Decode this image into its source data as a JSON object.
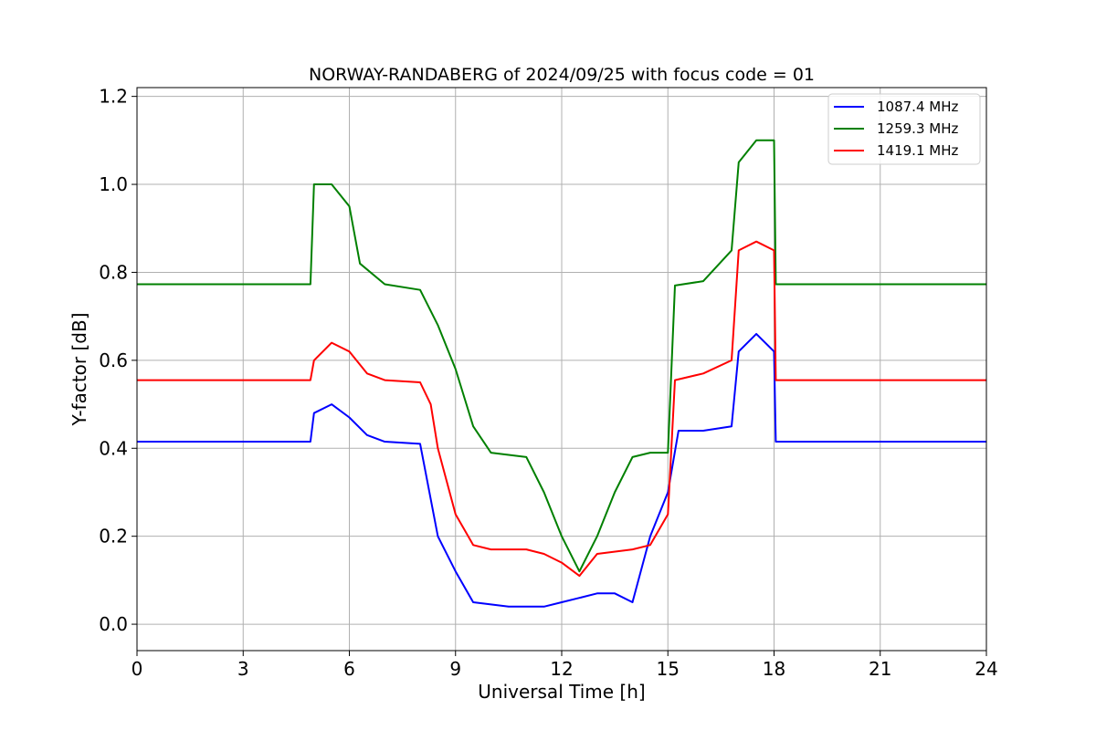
{
  "chart_data": {
    "type": "line",
    "title": "NORWAY-RANDABERG of 2024/09/25 with focus code = 01",
    "xlabel": "Universal Time [h]",
    "ylabel": "Y-factor [dB]",
    "xlim": [
      0,
      24
    ],
    "ylim": [
      -0.06,
      1.22
    ],
    "xticks": [
      0,
      3,
      6,
      9,
      12,
      15,
      18,
      21,
      24
    ],
    "yticks": [
      0.0,
      0.2,
      0.4,
      0.6,
      0.8,
      1.0,
      1.2
    ],
    "ytick_labels": [
      "0.0",
      "0.2",
      "0.4",
      "0.6",
      "0.8",
      "1.0",
      "1.2"
    ],
    "grid": true,
    "legend_position": "top-right",
    "series": [
      {
        "name": "1087.4 MHz",
        "color": "#0000ff",
        "x": [
          0,
          4.9,
          5.0,
          5.5,
          6.0,
          6.5,
          7.0,
          8.0,
          8.5,
          9.0,
          9.5,
          10.5,
          11.5,
          12.0,
          12.5,
          13.0,
          13.5,
          14.0,
          14.5,
          15.0,
          15.3,
          16.0,
          16.8,
          17.0,
          17.5,
          18.0,
          18.05,
          24
        ],
        "y": [
          0.415,
          0.415,
          0.48,
          0.5,
          0.47,
          0.43,
          0.415,
          0.41,
          0.2,
          0.12,
          0.05,
          0.04,
          0.04,
          0.05,
          0.06,
          0.07,
          0.07,
          0.05,
          0.2,
          0.3,
          0.44,
          0.44,
          0.45,
          0.62,
          0.66,
          0.62,
          0.415,
          0.415
        ]
      },
      {
        "name": "1259.3 MHz",
        "color": "#008000",
        "x": [
          0,
          4.9,
          5.0,
          5.5,
          6.0,
          6.3,
          7.0,
          8.0,
          8.5,
          9.0,
          9.5,
          10.0,
          11.0,
          11.5,
          12.0,
          12.5,
          13.0,
          13.5,
          14.0,
          14.5,
          15.0,
          15.2,
          16.0,
          16.8,
          17.0,
          17.5,
          18.0,
          18.05,
          24
        ],
        "y": [
          0.773,
          0.773,
          1.0,
          1.0,
          0.95,
          0.82,
          0.773,
          0.76,
          0.68,
          0.58,
          0.45,
          0.39,
          0.38,
          0.3,
          0.2,
          0.12,
          0.2,
          0.3,
          0.38,
          0.39,
          0.39,
          0.77,
          0.78,
          0.85,
          1.05,
          1.1,
          1.1,
          0.773,
          0.773
        ]
      },
      {
        "name": "1419.1 MHz",
        "color": "#ff0000",
        "x": [
          0,
          4.9,
          5.0,
          5.5,
          6.0,
          6.5,
          7.0,
          8.0,
          8.3,
          8.5,
          9.0,
          9.5,
          10.0,
          11.0,
          11.5,
          12.0,
          12.5,
          13.0,
          14.0,
          14.5,
          15.0,
          15.2,
          16.0,
          16.8,
          17.0,
          17.5,
          18.0,
          18.05,
          24
        ],
        "y": [
          0.555,
          0.555,
          0.6,
          0.64,
          0.62,
          0.57,
          0.555,
          0.55,
          0.5,
          0.4,
          0.25,
          0.18,
          0.17,
          0.17,
          0.16,
          0.14,
          0.11,
          0.16,
          0.17,
          0.18,
          0.25,
          0.555,
          0.57,
          0.6,
          0.85,
          0.87,
          0.85,
          0.555,
          0.555
        ]
      }
    ]
  }
}
